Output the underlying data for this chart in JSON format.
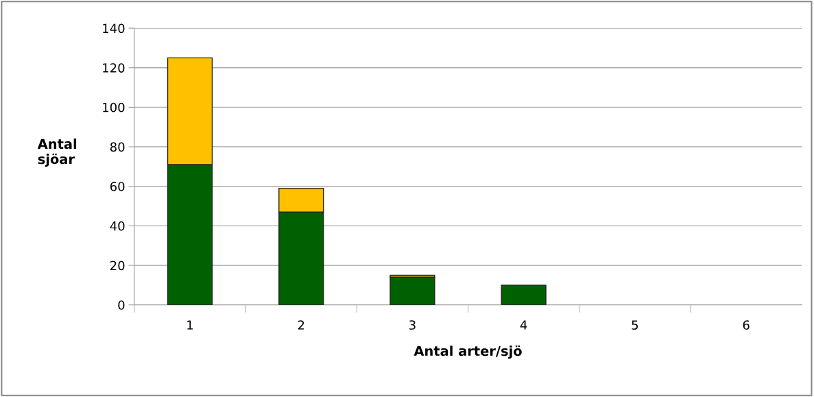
{
  "chart_data": {
    "type": "bar",
    "stacked": true,
    "xlabel": "Antal arter/sjö",
    "ylabel": "Antal\nsjöar",
    "categories": [
      "1",
      "2",
      "3",
      "4",
      "5",
      "6"
    ],
    "series": [
      {
        "color": "#006100",
        "values": [
          71,
          47,
          14,
          10,
          null,
          null
        ]
      },
      {
        "color": "#ffc000",
        "values": [
          54,
          12,
          1,
          null,
          null,
          null
        ]
      }
    ],
    "ylim": [
      0,
      140
    ],
    "yticks": [
      0,
      20,
      40,
      60,
      80,
      100,
      120,
      140
    ],
    "grid": "y",
    "legend": false
  }
}
